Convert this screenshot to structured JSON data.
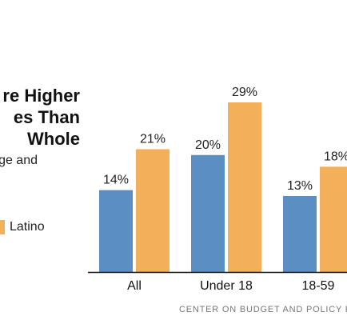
{
  "title_lines": [
    "re Higher",
    "es Than",
    "Whole"
  ],
  "subtitle": "ge and",
  "credit": "CENTER ON BUDGET AND POLICY P",
  "colors": {
    "series_a": "#5b8fc4",
    "series_b": "#f2b05a",
    "axis": "#111111"
  },
  "chart_data": {
    "type": "bar",
    "categories": [
      "All",
      "Under 18",
      "18-59"
    ],
    "series": [
      {
        "name": "",
        "values": [
          14,
          20,
          13
        ],
        "labels": [
          "14%",
          "20%",
          "13%"
        ]
      },
      {
        "name": "Latino",
        "values": [
          21,
          29,
          18
        ],
        "labels": [
          "21%",
          "29%",
          "18%"
        ]
      }
    ],
    "ylim": [
      0,
      29
    ],
    "grid": false,
    "legend": "left"
  }
}
